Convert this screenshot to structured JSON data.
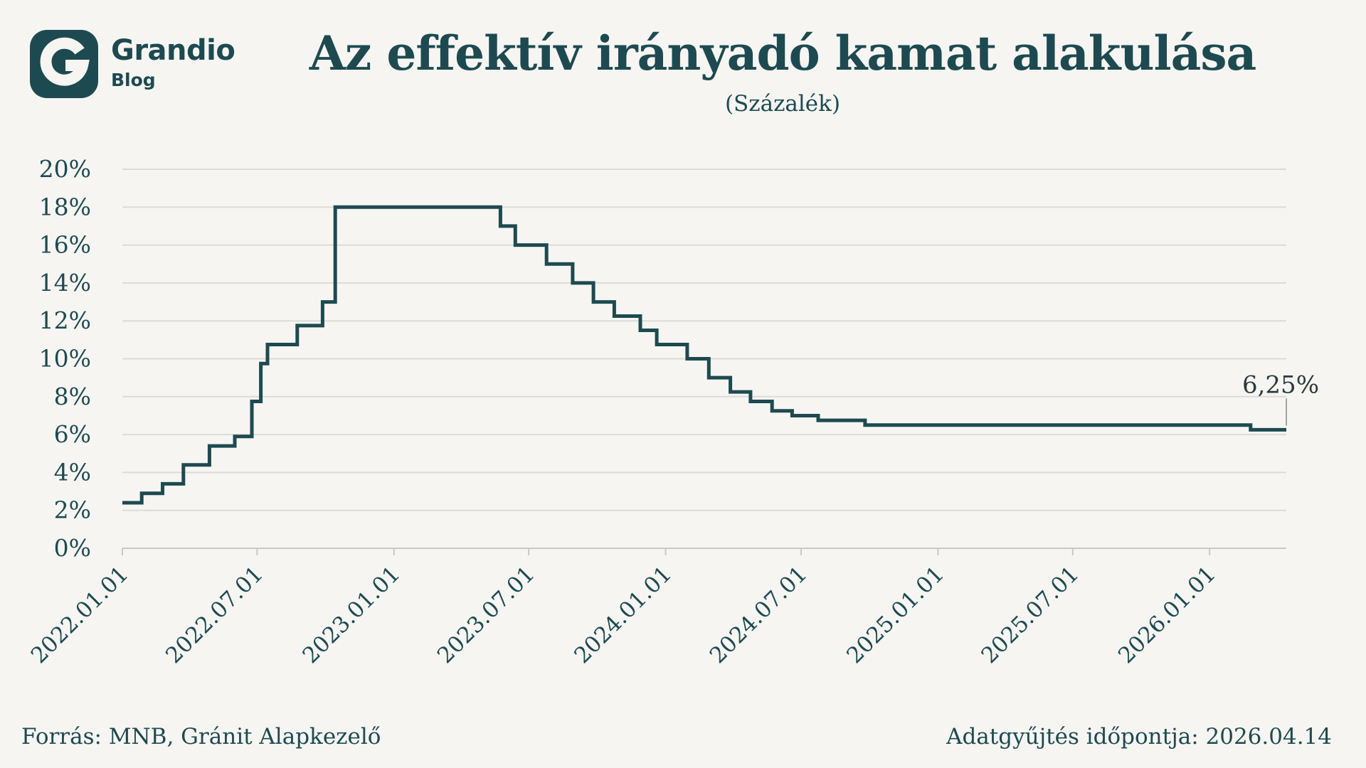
{
  "logo": {
    "name": "Grandio",
    "sub": "Blog",
    "icon": "grandio-g-icon"
  },
  "title": "Az effektív irányadó kamat alakulása",
  "subtitle": "(Százalék)",
  "footer": {
    "source": "Forrás: MNB, Gránit Alapkezelő",
    "date": "Adatgyűjtés időpontja: 2026.04.14"
  },
  "colors": {
    "line": "#1d4a50",
    "grid": "#dcdbd7",
    "axis": "#c9c8c4",
    "background": "#f6f5f2"
  },
  "chart_data": {
    "type": "line",
    "step": true,
    "ylim": [
      0,
      20
    ],
    "yticks": [
      0,
      2,
      4,
      6,
      8,
      10,
      12,
      14,
      16,
      18,
      20
    ],
    "ytick_labels": [
      "0%",
      "2%",
      "4%",
      "6%",
      "8%",
      "10%",
      "12%",
      "14%",
      "16%",
      "18%",
      "20%"
    ],
    "xlim": [
      "2022-01-01",
      "2026-04-14"
    ],
    "xticks": [
      "2022-01-01",
      "2022-07-01",
      "2023-01-01",
      "2023-07-01",
      "2024-01-01",
      "2024-07-01",
      "2025-01-01",
      "2025-07-01",
      "2026-01-01"
    ],
    "xtick_labels": [
      "2022.01.01",
      "2022.07.01",
      "2023.01.01",
      "2023.07.01",
      "2024.01.01",
      "2024.07.01",
      "2025.01.01",
      "2025.07.01",
      "2026.01.01"
    ],
    "grid": true,
    "points": [
      [
        "2022-01-01",
        2.4
      ],
      [
        "2022-01-27",
        2.9
      ],
      [
        "2022-02-24",
        3.4
      ],
      [
        "2022-03-24",
        4.4
      ],
      [
        "2022-04-28",
        5.4
      ],
      [
        "2022-06-01",
        5.9
      ],
      [
        "2022-06-24",
        7.75
      ],
      [
        "2022-07-06",
        9.75
      ],
      [
        "2022-07-15",
        10.75
      ],
      [
        "2022-08-24",
        11.75
      ],
      [
        "2022-09-27",
        13.0
      ],
      [
        "2022-10-14",
        18.0
      ],
      [
        "2023-05-24",
        17.0
      ],
      [
        "2023-06-13",
        16.0
      ],
      [
        "2023-07-25",
        15.0
      ],
      [
        "2023-08-29",
        14.0
      ],
      [
        "2023-09-26",
        13.0
      ],
      [
        "2023-10-24",
        12.25
      ],
      [
        "2023-11-28",
        11.5
      ],
      [
        "2023-12-20",
        10.75
      ],
      [
        "2024-01-30",
        10.0
      ],
      [
        "2024-02-28",
        9.0
      ],
      [
        "2024-03-28",
        8.25
      ],
      [
        "2024-04-24",
        7.75
      ],
      [
        "2024-05-23",
        7.25
      ],
      [
        "2024-06-19",
        7.0
      ],
      [
        "2024-07-24",
        6.75
      ],
      [
        "2024-09-25",
        6.5
      ],
      [
        "2026-02-25",
        6.25
      ],
      [
        "2026-04-14",
        6.25
      ]
    ],
    "annotation": {
      "label": "6,25%",
      "x": "2026-04-14",
      "y": 6.25
    }
  }
}
